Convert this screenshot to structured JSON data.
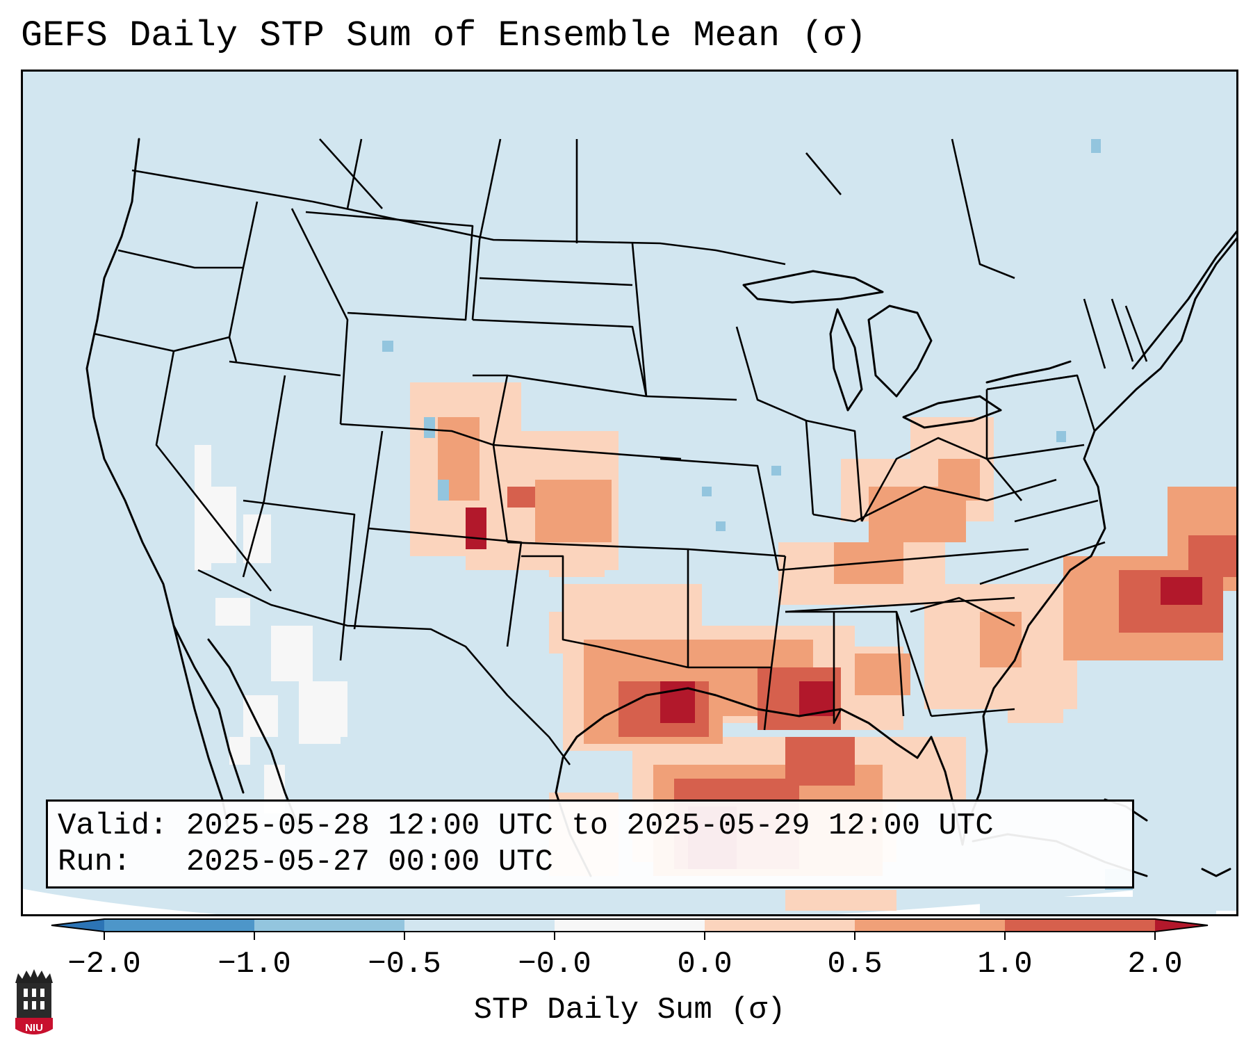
{
  "title": "GEFS Daily STP Sum of Ensemble Mean (σ)",
  "info": {
    "valid_line": "Valid: 2025-05-28 12:00 UTC to 2025-05-29 12:00 UTC",
    "run_line": "Run:   2025-05-27 00:00 UTC"
  },
  "colorbar": {
    "label": "STP Daily Sum (σ)",
    "ticks": [
      "−2.0",
      "−1.0",
      "−0.5",
      "−0.0",
      "0.0",
      "0.5",
      "1.0",
      "2.0"
    ],
    "colors": [
      "#2c74b5",
      "#4d96c9",
      "#93c5de",
      "#d2e6f0",
      "#f7f7f7",
      "#fbd4bd",
      "#f0a078",
      "#d6604d",
      "#b2182b"
    ]
  },
  "logo": {
    "text": "NIU",
    "color": "#c8102e"
  },
  "chart_data": {
    "type": "heatmap",
    "title": "GEFS Daily STP Sum of Ensemble Mean (σ)",
    "colorbar_label": "STP Daily Sum (σ)",
    "color_levels": [
      "−2.0",
      "−1.0",
      "−0.5",
      "−0.0",
      "0.0",
      "0.5",
      "1.0",
      "2.0"
    ],
    "highlight_regions": [
      {
        "region": "Southeast Texas / Louisiana coast / NW Gulf of Mexico",
        "level": "1.0 to 2.0+"
      },
      {
        "region": "Mississippi / Alabama",
        "level": "0.5 to 2.0"
      },
      {
        "region": "Southeast Colorado / Kansas",
        "level": "0.5 to 2.0"
      },
      {
        "region": "Ohio Valley / Kentucky",
        "level": "0.0 to 1.0"
      },
      {
        "region": "Western Atlantic off the Carolinas",
        "level": "1.0 to 2.0"
      },
      {
        "region": "Northwest Mexico / Sierra Madre",
        "level": "-0.5 to -0.0"
      }
    ]
  }
}
